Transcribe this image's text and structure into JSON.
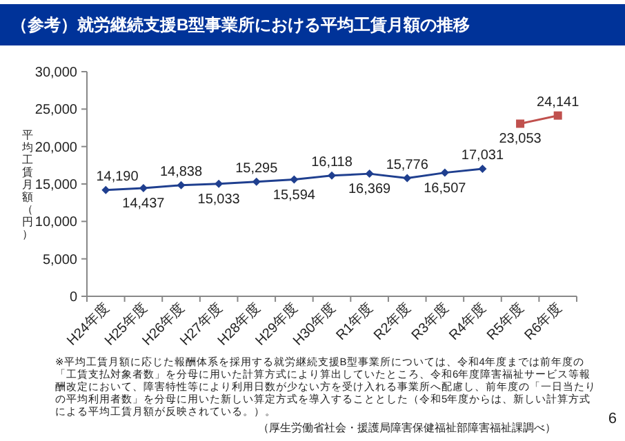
{
  "chart_data": {
    "type": "line",
    "title": "（参考）就労継続支援B型事業所における平均工賃月額の推移",
    "ylabel": "平均工賃月額（円）",
    "categories": [
      "H24年度",
      "H25年度",
      "H26年度",
      "H27年度",
      "H28年度",
      "H29年度",
      "H30年度",
      "R1年度",
      "R2年度",
      "R3年度",
      "R4年度",
      "R5年度",
      "R6年度"
    ],
    "series": [
      {
        "color": "#1f3f8f",
        "marker": "diamond",
        "values": [
          14190,
          14437,
          14838,
          15033,
          15295,
          15594,
          16118,
          16369,
          15776,
          16507,
          17031,
          null,
          null
        ],
        "value_labels": [
          "14,190",
          "14,437",
          "14,838",
          "15,033",
          "15,295",
          "15,594",
          "16,118",
          "16,369",
          "15,776",
          "16,507",
          "17,031",
          null,
          null
        ]
      },
      {
        "color": "#c0504d",
        "marker": "square",
        "values": [
          null,
          null,
          null,
          null,
          null,
          null,
          null,
          null,
          null,
          null,
          null,
          23053,
          24141
        ],
        "value_labels": [
          null,
          null,
          null,
          null,
          null,
          null,
          null,
          null,
          null,
          null,
          null,
          "23,053",
          "24,141"
        ]
      }
    ],
    "ylim": [
      0,
      30000
    ],
    "yticks": [
      {
        "value": 0,
        "label": "0"
      },
      {
        "value": 5000,
        "label": "5,000"
      },
      {
        "value": 10000,
        "label": "10,000"
      },
      {
        "value": 15000,
        "label": "15,000"
      },
      {
        "value": 20000,
        "label": "20,000"
      },
      {
        "value": 25000,
        "label": "25,000"
      },
      {
        "value": 30000,
        "label": "30,000"
      }
    ],
    "annotations": [
      "※平均工賃月額に応じた報酬体系を採用する就労継続支援B型事業所については、令和4年度までは前年度の「工賃支払対象者数」を分母に用いた計算方式により算出していたところ、令和6年度障害福祉サービス等報酬改定において、障害特性等により利用日数が少ない方を受け入れる事業所へ配慮し、前年度の「一日当たりの平均利用者数」を分母に用いた新しい算定方式を導入することとした（令和5年度からは、新しい計算方式による平均工賃月額が反映されている。）。",
      "（厚生労働省社会・援護局障害保健福祉部障害福祉課調べ）",
      "6"
    ]
  }
}
